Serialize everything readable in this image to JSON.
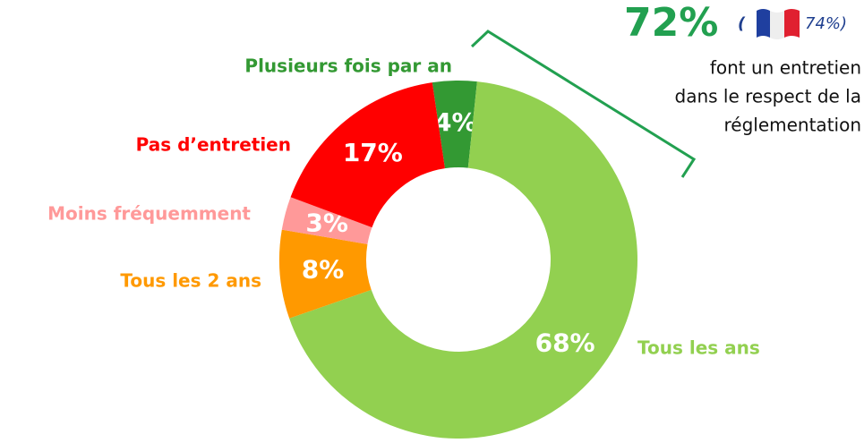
{
  "chart_data": {
    "type": "pie",
    "donut": true,
    "categories": [
      "Plusieurs fois par an",
      "Tous les ans",
      "Tous les 2 ans",
      "Moins fréquemment",
      "Pas d’entretien"
    ],
    "values": [
      4,
      68,
      8,
      3,
      17
    ],
    "value_labels": [
      "4%",
      "68%",
      "8%",
      "3%",
      "17%"
    ],
    "colors": [
      "#339933",
      "#92d050",
      "#ff9900",
      "#ff9999",
      "#ff0000"
    ],
    "annotations": {
      "highlight": "72%",
      "comparison_open": "(",
      "comparison": "74%)",
      "text": [
        "font un entretien",
        "dans le respect de la",
        "réglementation"
      ]
    }
  }
}
